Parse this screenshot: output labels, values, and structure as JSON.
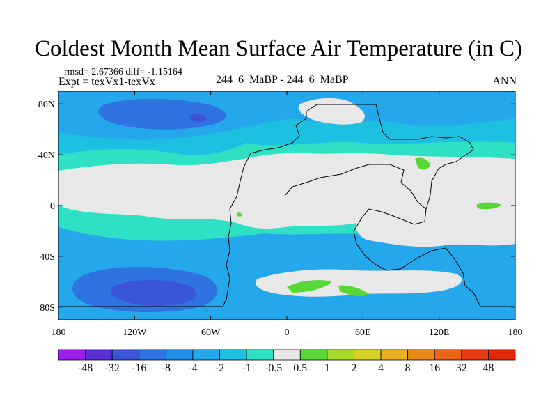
{
  "title": "Coldest Month Mean Surface Air Temperature (in C)",
  "stats_line": "rmsd= 2.67366 diff= -1.15164",
  "expt_line": "Expt = texVx1-texVx",
  "center_label": "244_6_MaBP - 244_6_MaBP",
  "right_label": "ANN",
  "map": {
    "lon_range": [
      -180,
      180
    ],
    "lat_range": [
      -90,
      90
    ],
    "lat_ticks": [
      {
        "value": 80,
        "label": "80N"
      },
      {
        "value": 40,
        "label": "40N"
      },
      {
        "value": 0,
        "label": "0"
      },
      {
        "value": -40,
        "label": "40S"
      },
      {
        "value": -80,
        "label": "80S"
      }
    ],
    "lon_ticks": [
      {
        "value": -180,
        "label": "180"
      },
      {
        "value": -120,
        "label": "120W"
      },
      {
        "value": -60,
        "label": "60W"
      },
      {
        "value": 0,
        "label": "0"
      },
      {
        "value": 60,
        "label": "60E"
      },
      {
        "value": 120,
        "label": "120E"
      },
      {
        "value": 180,
        "label": "180"
      }
    ]
  },
  "colorbar": {
    "labels": [
      "-48",
      "-32",
      "-16",
      "-8",
      "-4",
      "-2",
      "-1",
      "-0.5",
      "0.5",
      "1",
      "2",
      "4",
      "8",
      "16",
      "32",
      "48"
    ],
    "colors": [
      "#9b1fe8",
      "#5a2fd6",
      "#3b55d9",
      "#2f73e0",
      "#1f8ee6",
      "#24a8eb",
      "#1dc0e0",
      "#2ee0c4",
      "#e8e8e8",
      "#58d838",
      "#a8d82a",
      "#d8d228",
      "#e8b020",
      "#e88a18",
      "#e86418",
      "#e83a10",
      "#e02808"
    ]
  }
}
